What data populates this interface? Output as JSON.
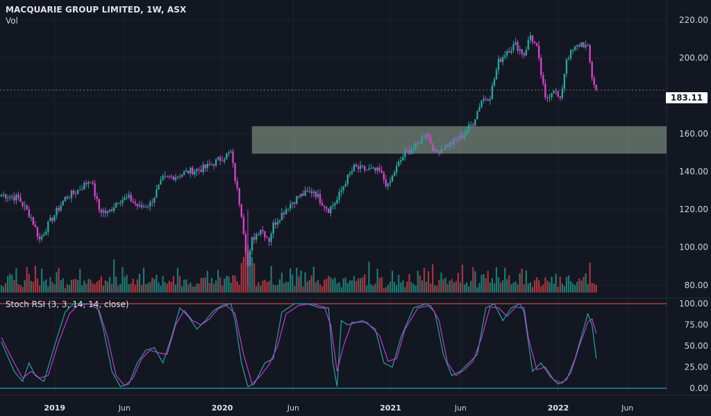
{
  "header": {
    "title": "MACQUARIE GROUP LIMITED, 1W, ASX",
    "volume_label": "Vol"
  },
  "indicator": {
    "label": "Stoch RSI (3, 3, 14, 14, close)"
  },
  "colors": {
    "background": "#131722",
    "up": "#26a69a",
    "down": "#d642c9",
    "vol_up": "#1f7a72",
    "vol_down": "#a8363d",
    "zone": "#97ab98",
    "k_line": "#26a69a",
    "d_line": "#c33ad3",
    "upper_band": "#ef5350",
    "lower_band": "#26c6da"
  },
  "chart_data": [
    {
      "type": "candlestick",
      "title": "MACQUARIE GROUP LIMITED, 1W, ASX",
      "ylim": [
        75,
        227
      ],
      "y_ticks": [
        80,
        100,
        120,
        140,
        160,
        180,
        200,
        220
      ],
      "y_tick_labels": [
        "80.00",
        "100.00",
        "120.00",
        "140.00",
        "160.00",
        "180.00",
        "200.00",
        "220.00"
      ],
      "x_ticks": [
        {
          "label": "2019",
          "t": 0.0769,
          "bold": true
        },
        {
          "label": "Jun",
          "t": 0.1752,
          "bold": false
        },
        {
          "label": "2020",
          "t": 0.3126,
          "bold": true
        },
        {
          "label": "Jun",
          "t": 0.4124,
          "bold": false
        },
        {
          "label": "2021",
          "t": 0.5493,
          "bold": true
        },
        {
          "label": "Jun",
          "t": 0.6479,
          "bold": false
        },
        {
          "label": "2022",
          "t": 0.7852,
          "bold": true
        },
        {
          "label": "Jun",
          "t": 0.8825,
          "bold": false
        }
      ],
      "last_price": 183.11,
      "last_price_label": "183.11",
      "zone": {
        "low": 149.5,
        "high": 164,
        "start_t": 0.3543
      },
      "anchors": [
        [
          0,
          128
        ],
        [
          8,
          126
        ],
        [
          14,
          116
        ],
        [
          18,
          104
        ],
        [
          22,
          112
        ],
        [
          30,
          126
        ],
        [
          36,
          130
        ],
        [
          42,
          136
        ],
        [
          44,
          128
        ],
        [
          46,
          120
        ],
        [
          50,
          118
        ],
        [
          55,
          125
        ],
        [
          60,
          126
        ],
        [
          65,
          121
        ],
        [
          70,
          123
        ],
        [
          76,
          136
        ],
        [
          83,
          138
        ],
        [
          88,
          140
        ],
        [
          96,
          142
        ],
        [
          105,
          148
        ],
        [
          108,
          150
        ],
        [
          110,
          136
        ],
        [
          113,
          118
        ],
        [
          116,
          90
        ],
        [
          118,
          104
        ],
        [
          122,
          110
        ],
        [
          126,
          104
        ],
        [
          128,
          112
        ],
        [
          135,
          122
        ],
        [
          140,
          127
        ],
        [
          147,
          130
        ],
        [
          150,
          125
        ],
        [
          154,
          120
        ],
        [
          158,
          125
        ],
        [
          162,
          135
        ],
        [
          166,
          142
        ],
        [
          172,
          141
        ],
        [
          178,
          140
        ],
        [
          182,
          132
        ],
        [
          185,
          140
        ],
        [
          190,
          150
        ],
        [
          195,
          153
        ],
        [
          200,
          161
        ],
        [
          204,
          150
        ],
        [
          208,
          153
        ],
        [
          212,
          155
        ],
        [
          217,
          159
        ],
        [
          222,
          166
        ],
        [
          226,
          178
        ],
        [
          230,
          180
        ],
        [
          234,
          198
        ],
        [
          238,
          204
        ],
        [
          242,
          207
        ],
        [
          246,
          202
        ],
        [
          249,
          212
        ],
        [
          252,
          205
        ],
        [
          256,
          178
        ],
        [
          260,
          184
        ],
        [
          263,
          177
        ],
        [
          266,
          200
        ],
        [
          270,
          205
        ],
        [
          273,
          208
        ],
        [
          276,
          205
        ],
        [
          278,
          190
        ],
        [
          280,
          183
        ]
      ],
      "n_weeks": 281,
      "volume": {
        "levels": [
          8,
          10,
          12,
          15,
          18,
          20,
          14,
          26,
          11,
          13,
          9,
          16,
          22,
          18,
          10,
          13,
          24,
          17,
          12,
          21,
          15,
          19,
          9,
          28,
          14,
          11,
          17,
          23,
          13,
          16
        ],
        "spike_week": 116,
        "spike_value": 55
      }
    },
    {
      "type": "line",
      "title": "Stoch RSI (3, 3, 14, 14, close)",
      "ylim": [
        0,
        100
      ],
      "y_ticks": [
        0,
        25,
        50,
        75,
        100
      ],
      "y_tick_labels": [
        "0.00",
        "25.00",
        "50.00",
        "75.00",
        "100.00"
      ],
      "bands": {
        "upper": 100,
        "lower": 0
      },
      "series": [
        {
          "name": "K",
          "anchors": [
            [
              0,
              55
            ],
            [
              6,
              20
            ],
            [
              10,
              8
            ],
            [
              13,
              30
            ],
            [
              16,
              15
            ],
            [
              20,
              8
            ],
            [
              25,
              50
            ],
            [
              30,
              90
            ],
            [
              34,
              100
            ],
            [
              40,
              100
            ],
            [
              45,
              98
            ],
            [
              48,
              70
            ],
            [
              52,
              20
            ],
            [
              56,
              2
            ],
            [
              60,
              5
            ],
            [
              64,
              30
            ],
            [
              68,
              45
            ],
            [
              72,
              48
            ],
            [
              76,
              30
            ],
            [
              80,
              60
            ],
            [
              84,
              95
            ],
            [
              88,
              85
            ],
            [
              92,
              70
            ],
            [
              96,
              80
            ],
            [
              100,
              92
            ],
            [
              104,
              98
            ],
            [
              108,
              100
            ],
            [
              110,
              80
            ],
            [
              113,
              30
            ],
            [
              116,
              2
            ],
            [
              119,
              5
            ],
            [
              124,
              30
            ],
            [
              128,
              35
            ],
            [
              132,
              90
            ],
            [
              138,
              100
            ],
            [
              144,
              100
            ],
            [
              150,
              95
            ],
            [
              154,
              95
            ],
            [
              156,
              30
            ],
            [
              158,
              2
            ],
            [
              160,
              80
            ],
            [
              163,
              75
            ],
            [
              170,
              80
            ],
            [
              176,
              70
            ],
            [
              180,
              30
            ],
            [
              184,
              25
            ],
            [
              188,
              60
            ],
            [
              194,
              95
            ],
            [
              200,
              100
            ],
            [
              204,
              90
            ],
            [
              208,
              40
            ],
            [
              212,
              15
            ],
            [
              216,
              20
            ],
            [
              220,
              30
            ],
            [
              224,
              40
            ],
            [
              228,
              95
            ],
            [
              232,
              100
            ],
            [
              236,
              80
            ],
            [
              240,
              95
            ],
            [
              244,
              100
            ],
            [
              246,
              90
            ],
            [
              250,
              20
            ],
            [
              254,
              30
            ],
            [
              258,
              15
            ],
            [
              262,
              5
            ],
            [
              266,
              10
            ],
            [
              270,
              35
            ],
            [
              274,
              70
            ],
            [
              276,
              88
            ],
            [
              278,
              75
            ],
            [
              280,
              35
            ]
          ]
        },
        {
          "name": "D",
          "anchors": [
            [
              0,
              60
            ],
            [
              6,
              30
            ],
            [
              10,
              12
            ],
            [
              14,
              20
            ],
            [
              18,
              12
            ],
            [
              22,
              15
            ],
            [
              27,
              55
            ],
            [
              32,
              88
            ],
            [
              36,
              98
            ],
            [
              42,
              100
            ],
            [
              46,
              92
            ],
            [
              50,
              60
            ],
            [
              54,
              15
            ],
            [
              58,
              3
            ],
            [
              62,
              12
            ],
            [
              66,
              35
            ],
            [
              70,
              45
            ],
            [
              74,
              42
            ],
            [
              78,
              40
            ],
            [
              82,
              75
            ],
            [
              86,
              92
            ],
            [
              90,
              80
            ],
            [
              94,
              75
            ],
            [
              98,
              82
            ],
            [
              102,
              94
            ],
            [
              106,
              98
            ],
            [
              110,
              88
            ],
            [
              114,
              40
            ],
            [
              118,
              5
            ],
            [
              122,
              15
            ],
            [
              126,
              28
            ],
            [
              130,
              50
            ],
            [
              134,
              88
            ],
            [
              140,
              98
            ],
            [
              146,
              100
            ],
            [
              152,
              96
            ],
            [
              155,
              75
            ],
            [
              158,
              20
            ],
            [
              161,
              50
            ],
            [
              165,
              78
            ],
            [
              172,
              78
            ],
            [
              178,
              62
            ],
            [
              182,
              32
            ],
            [
              186,
              35
            ],
            [
              190,
              70
            ],
            [
              196,
              95
            ],
            [
              202,
              98
            ],
            [
              206,
              80
            ],
            [
              210,
              30
            ],
            [
              214,
              15
            ],
            [
              218,
              22
            ],
            [
              222,
              32
            ],
            [
              226,
              60
            ],
            [
              230,
              96
            ],
            [
              234,
              95
            ],
            [
              238,
              85
            ],
            [
              242,
              96
            ],
            [
              246,
              95
            ],
            [
              248,
              60
            ],
            [
              252,
              22
            ],
            [
              256,
              25
            ],
            [
              260,
              10
            ],
            [
              264,
              6
            ],
            [
              268,
              18
            ],
            [
              272,
              50
            ],
            [
              276,
              78
            ],
            [
              278,
              82
            ],
            [
              280,
              65
            ]
          ]
        }
      ]
    }
  ]
}
